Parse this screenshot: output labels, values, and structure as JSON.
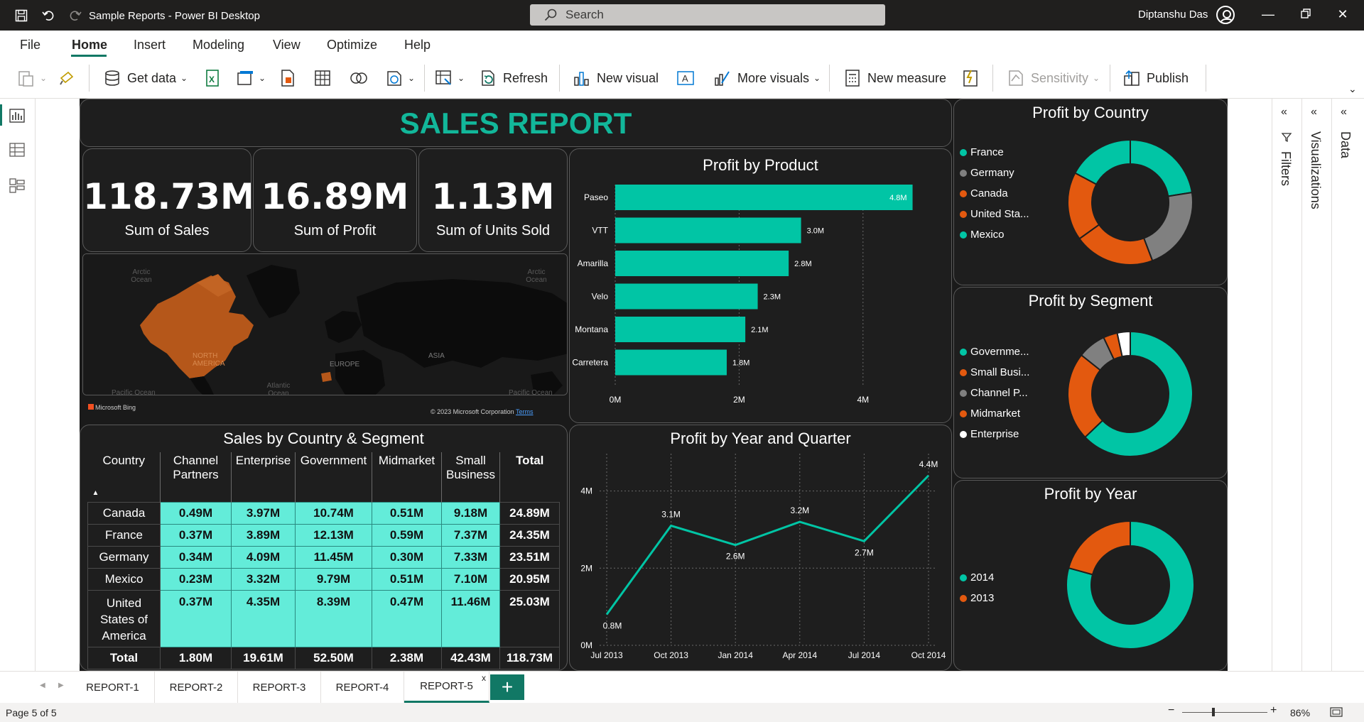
{
  "app": {
    "title": "Sample Reports - Power BI Desktop",
    "search_placeholder": "Search",
    "user_name": "Diptanshu Das"
  },
  "menu": {
    "items": [
      "File",
      "Home",
      "Insert",
      "Modeling",
      "View",
      "Optimize",
      "Help"
    ],
    "active": "Home"
  },
  "ribbon": {
    "get_data": "Get data",
    "refresh": "Refresh",
    "new_visual": "New visual",
    "more_visuals": "More visuals",
    "new_measure": "New measure",
    "sensitivity": "Sensitivity",
    "publish": "Publish"
  },
  "report": {
    "title": "SALES REPORT",
    "kpis": [
      {
        "value": "118.73M",
        "label": "Sum of  Sales"
      },
      {
        "value": "16.89M",
        "label": "Sum of Profit"
      },
      {
        "value": "1.13M",
        "label": "Sum of Units Sold"
      }
    ],
    "map": {
      "labels": [
        "Arctic Ocean",
        "Arctic Ocean",
        "NORTH AMERICA",
        "EUROPE",
        "ASIA",
        "Pacific Ocean",
        "Atlantic Ocean",
        "Pacific Ocean"
      ],
      "bing": "Microsoft Bing",
      "copyright": "© 2023 Microsoft Corporation",
      "terms": "Terms"
    },
    "matrix": {
      "title": "Sales by Country & Segment",
      "columns": [
        "Country",
        "Channel Partners",
        "Enterprise",
        "Government",
        "Midmarket",
        "Small Business",
        "Total"
      ],
      "rows": [
        [
          "Canada",
          "0.49M",
          "3.97M",
          "10.74M",
          "0.51M",
          "9.18M",
          "24.89M"
        ],
        [
          "France",
          "0.37M",
          "3.89M",
          "12.13M",
          "0.59M",
          "7.37M",
          "24.35M"
        ],
        [
          "Germany",
          "0.34M",
          "4.09M",
          "11.45M",
          "0.30M",
          "7.33M",
          "23.51M"
        ],
        [
          "Mexico",
          "0.23M",
          "3.32M",
          "9.79M",
          "0.51M",
          "7.10M",
          "20.95M"
        ],
        [
          "United States of America",
          "0.37M",
          "4.35M",
          "8.39M",
          "0.47M",
          "11.46M",
          "25.03M"
        ]
      ],
      "total": [
        "Total",
        "1.80M",
        "19.61M",
        "52.50M",
        "2.38M",
        "42.43M",
        "118.73M"
      ]
    }
  },
  "tabs": [
    "REPORT-1",
    "REPORT-2",
    "REPORT-3",
    "REPORT-4",
    "REPORT-5"
  ],
  "active_tab": "REPORT-5",
  "panes": {
    "filters": "Filters",
    "visualizations": "Visualizations",
    "data": "Data"
  },
  "status": {
    "page": "Page 5 of 5",
    "zoom": "86%"
  },
  "colors": {
    "teal": "#01c5a5",
    "orange": "#e3590f",
    "gray": "#808080",
    "white": "#ffffff",
    "title_teal": "#12b79a"
  },
  "chart_data": [
    {
      "type": "bar",
      "title": "Profit by Product",
      "categories": [
        "Paseo",
        "VTT",
        "Amarilla",
        "Velo",
        "Montana",
        "Carretera"
      ],
      "values": [
        4.8,
        3.0,
        2.8,
        2.3,
        2.1,
        1.8
      ],
      "data_labels": [
        "4.8M",
        "3.0M",
        "2.8M",
        "2.3M",
        "2.1M",
        "1.8M"
      ],
      "xticks": [
        "0M",
        "2M",
        "4M"
      ],
      "xlim": [
        0,
        5
      ],
      "grid": true
    },
    {
      "type": "line",
      "title": "Profit by Year and Quarter",
      "x": [
        "Jul 2013",
        "Oct 2013",
        "Jan 2014",
        "Apr 2014",
        "Jul 2014",
        "Oct 2014"
      ],
      "values": [
        0.8,
        3.1,
        2.6,
        3.2,
        2.7,
        4.4
      ],
      "data_labels": [
        "0.8M",
        "3.1M",
        "2.6M",
        "3.2M",
        "2.7M",
        "4.4M"
      ],
      "yticks": [
        "0M",
        "2M",
        "4M"
      ],
      "ylim": [
        0,
        4.6
      ],
      "grid": true
    },
    {
      "type": "pie",
      "title": "Profit by Country",
      "categories": [
        "France",
        "Germany",
        "Canada",
        "United Sta...",
        "Mexico"
      ],
      "values": [
        3.8,
        3.68,
        3.53,
        2.99,
        2.91
      ],
      "colors": [
        "#01c5a5",
        "#808080",
        "#e3590f",
        "#e3590f",
        "#01c5a5"
      ],
      "legend": "left"
    },
    {
      "type": "pie",
      "title": "Profit by Segment",
      "categories": [
        "Governme...",
        "Small Busi...",
        "Channel P...",
        "Midmarket",
        "Enterprise"
      ],
      "values": [
        11.39,
        4.14,
        1.32,
        0.66,
        -0.61
      ],
      "colors": [
        "#01c5a5",
        "#e3590f",
        "#808080",
        "#e3590f",
        "#ffffff"
      ],
      "legend": "left"
    },
    {
      "type": "pie",
      "title": "Profit by Year",
      "categories": [
        "2014",
        "2013"
      ],
      "values": [
        13.4,
        3.5
      ],
      "colors": [
        "#01c5a5",
        "#e3590f"
      ],
      "legend": "left"
    }
  ]
}
